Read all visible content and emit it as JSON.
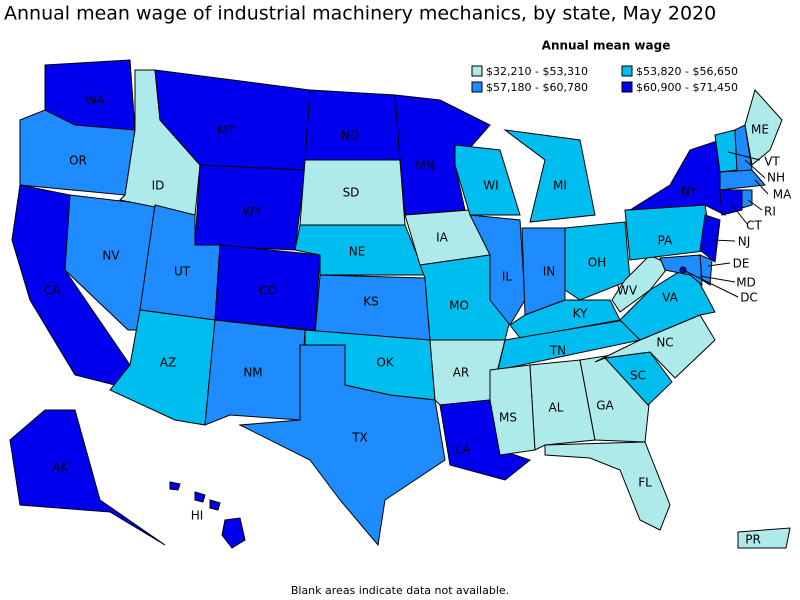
{
  "title": "Annual mean wage of industrial machinery mechanics, by state, May 2020",
  "legend": {
    "title": "Annual mean wage",
    "items": [
      {
        "label": "$32,210 - $53,310",
        "color": "#aeeaea"
      },
      {
        "label": "$53,820 - $56,650",
        "color": "#00bdf0"
      },
      {
        "label": "$57,180 - $60,780",
        "color": "#1e8cff"
      },
      {
        "label": "$60,900 - $71,450",
        "color": "#0000ee"
      }
    ]
  },
  "states": [
    {
      "label": "WA",
      "color": "#0000ee"
    },
    {
      "label": "OR",
      "color": "#1e8cff"
    },
    {
      "label": "CA",
      "color": "#0000ee"
    },
    {
      "label": "NV",
      "color": "#1e8cff"
    },
    {
      "label": "ID",
      "color": "#aeeaea"
    },
    {
      "label": "MT",
      "color": "#0000ee"
    },
    {
      "label": "WY",
      "color": "#0000ee"
    },
    {
      "label": "UT",
      "color": "#1e8cff"
    },
    {
      "label": "CO",
      "color": "#0000ee"
    },
    {
      "label": "AZ",
      "color": "#00bdf0"
    },
    {
      "label": "NM",
      "color": "#1e8cff"
    },
    {
      "label": "ND",
      "color": "#0000ee"
    },
    {
      "label": "SD",
      "color": "#aeeaea"
    },
    {
      "label": "NE",
      "color": "#00bdf0"
    },
    {
      "label": "KS",
      "color": "#1e8cff"
    },
    {
      "label": "OK",
      "color": "#00bdf0"
    },
    {
      "label": "TX",
      "color": "#1e8cff"
    },
    {
      "label": "MN",
      "color": "#0000ee"
    },
    {
      "label": "IA",
      "color": "#aeeaea"
    },
    {
      "label": "MO",
      "color": "#00bdf0"
    },
    {
      "label": "AR",
      "color": "#aeeaea"
    },
    {
      "label": "LA",
      "color": "#0000ee"
    },
    {
      "label": "WI",
      "color": "#00bdf0"
    },
    {
      "label": "IL",
      "color": "#1e8cff"
    },
    {
      "label": "MI",
      "color": "#00bdf0"
    },
    {
      "label": "IN",
      "color": "#1e8cff"
    },
    {
      "label": "OH",
      "color": "#00bdf0"
    },
    {
      "label": "KY",
      "color": "#00bdf0"
    },
    {
      "label": "TN",
      "color": "#00bdf0"
    },
    {
      "label": "MS",
      "color": "#aeeaea"
    },
    {
      "label": "AL",
      "color": "#aeeaea"
    },
    {
      "label": "GA",
      "color": "#aeeaea"
    },
    {
      "label": "FL",
      "color": "#aeeaea"
    },
    {
      "label": "SC",
      "color": "#00bdf0"
    },
    {
      "label": "NC",
      "color": "#aeeaea"
    },
    {
      "label": "VA",
      "color": "#00bdf0"
    },
    {
      "label": "WV",
      "color": "#aeeaea"
    },
    {
      "label": "PA",
      "color": "#00bdf0"
    },
    {
      "label": "NY",
      "color": "#0000ee"
    },
    {
      "label": "VT",
      "color": "#00bdf0"
    },
    {
      "label": "NH",
      "color": "#1e8cff"
    },
    {
      "label": "ME",
      "color": "#aeeaea"
    },
    {
      "label": "MA",
      "color": "#1e8cff"
    },
    {
      "label": "CT",
      "color": "#0000ee"
    },
    {
      "label": "RI",
      "color": "#1e8cff"
    },
    {
      "label": "NJ",
      "color": "#0000ee"
    },
    {
      "label": "DE",
      "color": "#1e8cff"
    },
    {
      "label": "MD",
      "color": "#1e8cff"
    },
    {
      "label": "DC",
      "color": "#0000ee"
    },
    {
      "label": "AK",
      "color": "#0000ee"
    },
    {
      "label": "HI",
      "color": "#0000ee"
    },
    {
      "label": "PR",
      "color": "#aeeaea"
    }
  ],
  "footnote": "Blank areas indicate data not available."
}
